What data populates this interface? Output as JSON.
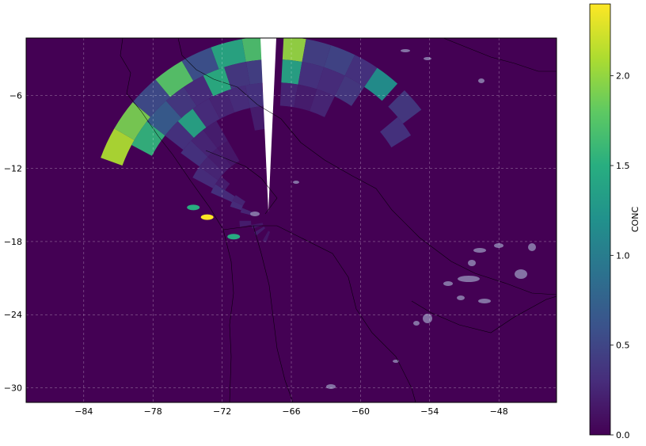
{
  "map": {
    "projection": "PlateCarree",
    "lon_range": [
      -89,
      -43
    ],
    "lat_range": [
      -31.2,
      -1.3
    ],
    "grid": true,
    "background_color": "#440154",
    "x_ticks": [
      -84,
      -78,
      -72,
      -66,
      -60,
      -54,
      -48
    ],
    "x_tick_labels": [
      "−84",
      "−78",
      "−72",
      "−66",
      "−60",
      "−54",
      "−48"
    ],
    "y_ticks": [
      -6,
      -12,
      -18,
      -24,
      -30
    ],
    "y_tick_labels": [
      "−6",
      "−12",
      "−18",
      "−24",
      "−30"
    ]
  },
  "colorbar": {
    "label": "CONC",
    "range": [
      0,
      2.4
    ],
    "ticks": [
      0.0,
      0.5,
      1.0,
      1.5,
      2.0
    ],
    "tick_labels": [
      "0.0",
      "0.5",
      "1.0",
      "1.5",
      "2.0"
    ],
    "colormap": "viridis"
  },
  "chart_data": {
    "type": "heatmap",
    "title": "",
    "xlabel": "",
    "ylabel": "",
    "center": [
      -67.5,
      -16.3
    ],
    "cells": [
      {
        "r0": 14,
        "r1": 16,
        "a0": -70,
        "a1": -60,
        "v": 2.1
      },
      {
        "r0": 14,
        "r1": 16,
        "a0": -60,
        "a1": -50,
        "v": 1.9
      },
      {
        "r0": 14,
        "r1": 16,
        "a0": -50,
        "a1": -40,
        "v": 0.55
      },
      {
        "r0": 14,
        "r1": 16,
        "a0": -40,
        "a1": -30,
        "v": 1.75
      },
      {
        "r0": 14,
        "r1": 16,
        "a0": -30,
        "a1": -20,
        "v": 0.6
      },
      {
        "r0": 14,
        "r1": 16,
        "a0": -20,
        "a1": -10,
        "v": 1.45
      },
      {
        "r0": 14,
        "r1": 16,
        "a0": -10,
        "a1": -2,
        "v": 1.7
      },
      {
        "r0": 14,
        "r1": 16,
        "a0": 3,
        "a1": 10,
        "v": 2.0
      },
      {
        "r0": 14,
        "r1": 16,
        "a0": 10,
        "a1": 18,
        "v": 0.45
      },
      {
        "r0": 14,
        "r1": 16,
        "a0": 18,
        "a1": 26,
        "v": 0.5
      },
      {
        "r0": 14,
        "r1": 16,
        "a0": 26,
        "a1": 34,
        "v": 0.35
      },
      {
        "r0": 14,
        "r1": 16,
        "a0": 34,
        "a1": 42,
        "v": 1.2
      },
      {
        "r0": 14,
        "r1": 16,
        "a0": 45,
        "a1": 53,
        "v": 0.4
      },
      {
        "r0": 12,
        "r1": 14,
        "a0": -62,
        "a1": -52,
        "v": 1.55
      },
      {
        "r0": 12,
        "r1": 14,
        "a0": -52,
        "a1": -42,
        "v": 0.7
      },
      {
        "r0": 12,
        "r1": 14,
        "a0": -42,
        "a1": -34,
        "v": 0.4
      },
      {
        "r0": 12,
        "r1": 14,
        "a0": -34,
        "a1": -26,
        "v": 0.3
      },
      {
        "r0": 12,
        "r1": 14,
        "a0": -26,
        "a1": -18,
        "v": 1.5
      },
      {
        "r0": 12,
        "r1": 14,
        "a0": -18,
        "a1": -10,
        "v": 0.4
      },
      {
        "r0": 12,
        "r1": 14,
        "a0": -10,
        "a1": -2,
        "v": 0.45
      },
      {
        "r0": 12,
        "r1": 14,
        "a0": 3,
        "a1": 10,
        "v": 1.4
      },
      {
        "r0": 12,
        "r1": 14,
        "a0": 10,
        "a1": 18,
        "v": 0.35
      },
      {
        "r0": 12,
        "r1": 14,
        "a0": 18,
        "a1": 26,
        "v": 0.3
      },
      {
        "r0": 12,
        "r1": 14,
        "a0": 26,
        "a1": 34,
        "v": 0.4
      },
      {
        "r0": 12,
        "r1": 14,
        "a0": 50,
        "a1": 58,
        "v": 0.35
      },
      {
        "r0": 10,
        "r1": 12,
        "a0": -52,
        "a1": -44,
        "v": 0.35
      },
      {
        "r0": 10,
        "r1": 12,
        "a0": -44,
        "a1": -36,
        "v": 1.4
      },
      {
        "r0": 10,
        "r1": 12,
        "a0": -36,
        "a1": -28,
        "v": 0.3
      },
      {
        "r0": 10,
        "r1": 12,
        "a0": -28,
        "a1": -20,
        "v": 0.25
      },
      {
        "r0": 10,
        "r1": 12,
        "a0": -20,
        "a1": -12,
        "v": 0.3
      },
      {
        "r0": 10,
        "r1": 12,
        "a0": -12,
        "a1": -5,
        "v": 0.35
      },
      {
        "r0": 10,
        "r1": 12,
        "a0": 3,
        "a1": 10,
        "v": 0.25
      },
      {
        "r0": 10,
        "r1": 12,
        "a0": 10,
        "a1": 18,
        "v": 0.2
      },
      {
        "r0": 10,
        "r1": 12,
        "a0": 18,
        "a1": 26,
        "v": 0.25
      },
      {
        "r0": 8,
        "r1": 10,
        "a0": -54,
        "a1": -46,
        "v": 0.35
      },
      {
        "r0": 8,
        "r1": 10,
        "a0": -46,
        "a1": -38,
        "v": 0.25
      },
      {
        "r0": 8,
        "r1": 10,
        "a0": -38,
        "a1": -30,
        "v": 0.2
      },
      {
        "r0": 8,
        "r1": 10,
        "a0": -12,
        "a1": -5,
        "v": 0.2
      },
      {
        "r0": 6,
        "r1": 8,
        "a0": -62,
        "a1": -54,
        "v": 0.3
      },
      {
        "r0": 6,
        "r1": 8,
        "a0": -54,
        "a1": -46,
        "v": 0.25
      },
      {
        "r0": 6,
        "r1": 8,
        "a0": -46,
        "a1": -38,
        "v": 0.2
      },
      {
        "r0": 6,
        "r1": 8,
        "a0": -38,
        "a1": -30,
        "v": 0.15
      },
      {
        "r0": 5,
        "r1": 6,
        "a0": -66,
        "a1": -58,
        "v": 0.35
      },
      {
        "r0": 5,
        "r1": 6,
        "a0": -58,
        "a1": -50,
        "v": 0.2
      },
      {
        "r0": 4,
        "r1": 5,
        "a0": -66,
        "a1": -58,
        "v": 0.3
      },
      {
        "r0": 3,
        "r1": 4,
        "a0": -72,
        "a1": -64,
        "v": 0.3
      },
      {
        "r0": 3,
        "r1": 4,
        "a0": -64,
        "a1": -56,
        "v": 0.25
      },
      {
        "r0": 2,
        "r1": 3,
        "a0": -76,
        "a1": -68,
        "v": 0.25
      },
      {
        "r0": 2,
        "r1": 3,
        "a0": -100,
        "a1": -90,
        "v": 0.2
      },
      {
        "r0": 1,
        "r1": 2,
        "a0": -110,
        "a1": -100,
        "v": 0.15
      },
      {
        "r0": 1,
        "r1": 2,
        "a0": -130,
        "a1": -120,
        "v": 0.2
      },
      {
        "r0": 1,
        "r1": 2,
        "a0": -160,
        "a1": -150,
        "v": 0.15
      }
    ],
    "patches": [
      {
        "lon": -73.3,
        "lat": -16.0,
        "v": 2.4
      },
      {
        "lon": -74.5,
        "lat": -15.2,
        "v": 1.5
      },
      {
        "lon": -71.0,
        "lat": -17.6,
        "v": 1.45
      }
    ]
  }
}
